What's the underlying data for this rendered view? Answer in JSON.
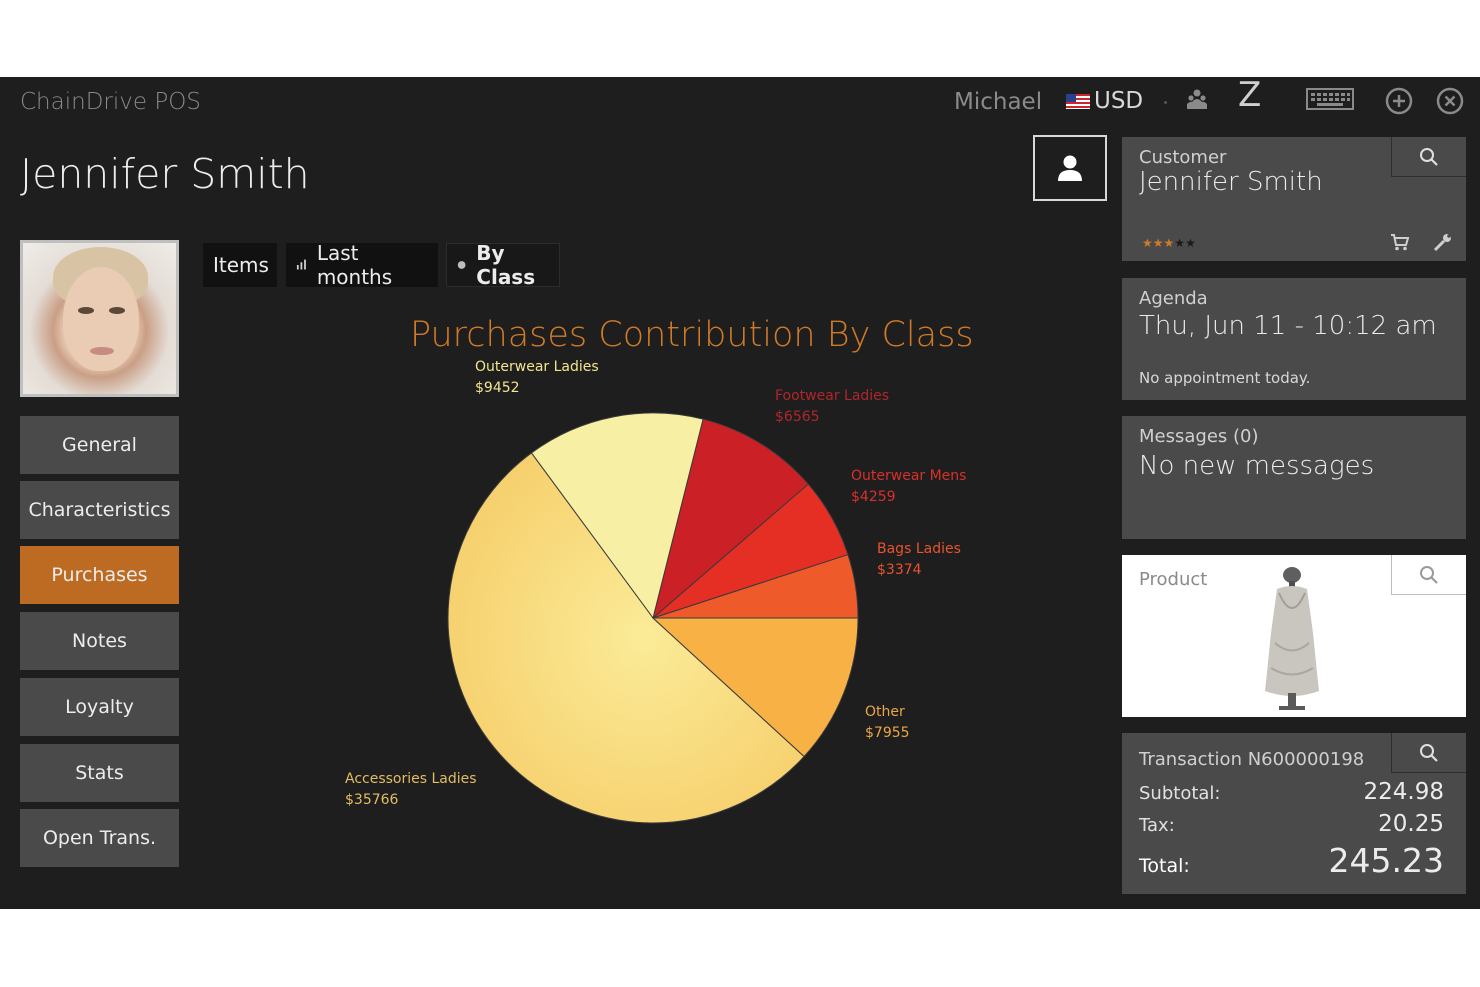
{
  "app": {
    "title": "ChainDrive POS"
  },
  "topbar": {
    "user": "Michael",
    "currency": "USD",
    "icons": [
      "users-icon",
      "z-report-icon",
      "keyboard-icon",
      "add-circle-icon",
      "close-circle-icon"
    ],
    "z_label": "Z"
  },
  "customer": {
    "name": "Jennifer Smith"
  },
  "nav": {
    "items": [
      {
        "label": "General"
      },
      {
        "label": "Characteristics"
      },
      {
        "label": "Purchases"
      },
      {
        "label": "Notes"
      },
      {
        "label": "Loyalty"
      },
      {
        "label": "Stats"
      },
      {
        "label": "Open Trans."
      }
    ],
    "active": "Purchases",
    "active_color": "#bd6b22"
  },
  "tabs": [
    {
      "label": "Items"
    },
    {
      "label": "Last months"
    },
    {
      "label": "By Class"
    }
  ],
  "chart_data": {
    "type": "pie",
    "title": "Purchases Contribution By Class",
    "slices": [
      {
        "name": "Bags Ladies",
        "value": 3374,
        "label": "$3374",
        "color": "#ee5a2a",
        "label_color": "#e8532b"
      },
      {
        "name": "Outerwear Mens",
        "value": 4259,
        "label": "$4259",
        "color": "#e52f24",
        "label_color": "#d8302c"
      },
      {
        "name": "Footwear Ladies",
        "value": 6565,
        "label": "$6565",
        "color": "#cc2027",
        "label_color": "#b0262b"
      },
      {
        "name": "Outerwear Ladies",
        "value": 9452,
        "label": "$9452",
        "color": "#f6efa4",
        "label_color": "#f2e58f"
      },
      {
        "name": "Accessories Ladies",
        "value": 35766,
        "label": "$35766",
        "color": "#f8d878",
        "label_color": "#e2bd64"
      },
      {
        "name": "Other",
        "value": 7955,
        "label": "$7955",
        "color": "#f8b144",
        "label_color": "#eca546"
      }
    ],
    "start_angle_deg": 0,
    "direction": "counterclockwise"
  },
  "panels": {
    "customer": {
      "title": "Customer",
      "name": "Jennifer Smith",
      "rating": 3.5,
      "rating_max": 5,
      "rating_color": "#d07a28"
    },
    "agenda": {
      "title": "Agenda",
      "date": "Thu, Jun 11 - 10:12 am",
      "note": "No appointment today."
    },
    "messages": {
      "title": "Messages (0)",
      "text": "No new messages"
    },
    "product": {
      "title": "Product"
    },
    "transaction": {
      "title": "Transaction N600000198",
      "subtotal_label": "Subtotal:",
      "subtotal": "224.98",
      "tax_label": "Tax:",
      "tax": "20.25",
      "total_label": "Total:",
      "total": "245.23"
    }
  }
}
